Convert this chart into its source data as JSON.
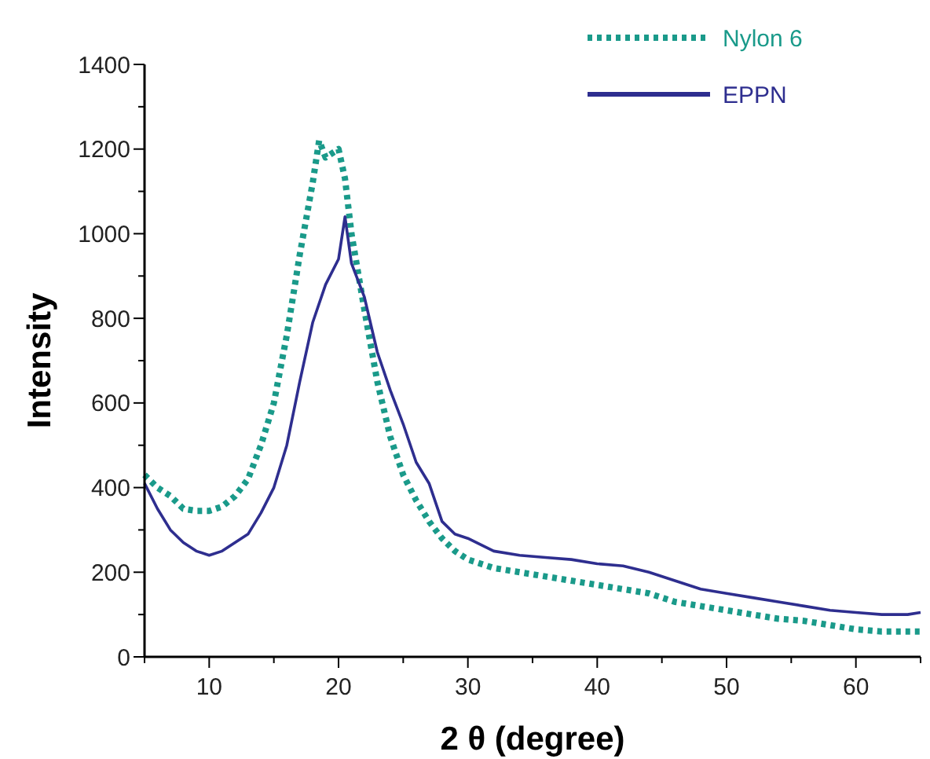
{
  "chart_data": {
    "type": "line",
    "xlabel": "2 θ (degree)",
    "ylabel": "Intensity",
    "xlim": [
      5,
      65
    ],
    "ylim": [
      0,
      1400
    ],
    "xticks": [
      {
        "value": 5,
        "label": null
      },
      10,
      {
        "value": 15,
        "label": null
      },
      20,
      {
        "value": 25,
        "label": null
      },
      30,
      {
        "value": 35,
        "label": null
      },
      40,
      {
        "value": 45,
        "label": null
      },
      50,
      {
        "value": 55,
        "label": null
      },
      60,
      {
        "value": 65,
        "label": null
      }
    ],
    "yticks": [
      0,
      {
        "value": 100,
        "label": null
      },
      200,
      {
        "value": 300,
        "label": null
      },
      400,
      {
        "value": 500,
        "label": null
      },
      600,
      {
        "value": 700,
        "label": null
      },
      800,
      {
        "value": 900,
        "label": null
      },
      1000,
      {
        "value": 1100,
        "label": null
      },
      1200,
      {
        "value": 1300,
        "label": null
      },
      1400
    ],
    "legend": "top right",
    "grid": false,
    "series": [
      {
        "name": "Nylon 6",
        "color": "#1a9a8a",
        "line_style": "dotted",
        "x": [
          5,
          6,
          7,
          8,
          9,
          10,
          11,
          12,
          13,
          14,
          15,
          16,
          17,
          18,
          18.5,
          19,
          19.5,
          20,
          20.5,
          21,
          22,
          23,
          24,
          25,
          26,
          27,
          28,
          29,
          30,
          32,
          34,
          36,
          38,
          40,
          42,
          44,
          46,
          48,
          50,
          52,
          54,
          56,
          58,
          60,
          62,
          64,
          65
        ],
        "values": [
          430,
          400,
          380,
          350,
          345,
          345,
          355,
          380,
          420,
          500,
          600,
          760,
          950,
          1120,
          1220,
          1180,
          1190,
          1200,
          1130,
          1000,
          820,
          650,
          520,
          430,
          370,
          320,
          280,
          250,
          230,
          210,
          200,
          190,
          180,
          170,
          160,
          150,
          130,
          120,
          110,
          100,
          90,
          85,
          75,
          65,
          60,
          60,
          60
        ]
      },
      {
        "name": "EPPN",
        "color": "#2e2e8f",
        "line_style": "solid",
        "x": [
          5,
          6,
          7,
          8,
          9,
          10,
          11,
          12,
          13,
          14,
          15,
          16,
          17,
          18,
          19,
          20,
          20.5,
          21,
          22,
          23,
          24,
          25,
          26,
          27,
          28,
          29,
          30,
          32,
          34,
          36,
          38,
          40,
          42,
          44,
          46,
          48,
          50,
          52,
          54,
          56,
          58,
          60,
          62,
          64,
          65
        ],
        "values": [
          410,
          350,
          300,
          270,
          250,
          240,
          250,
          270,
          290,
          340,
          400,
          500,
          650,
          790,
          880,
          940,
          1040,
          930,
          850,
          720,
          630,
          550,
          460,
          410,
          320,
          290,
          280,
          250,
          240,
          235,
          230,
          220,
          215,
          200,
          180,
          160,
          150,
          140,
          130,
          120,
          110,
          105,
          100,
          100,
          105
        ]
      }
    ]
  }
}
